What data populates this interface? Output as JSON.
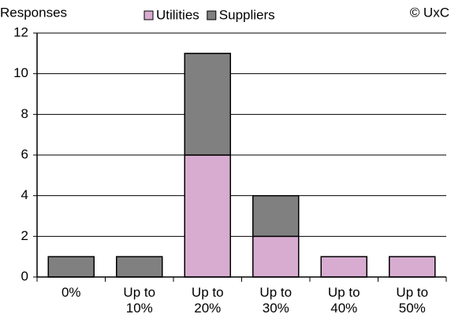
{
  "chart_data": {
    "type": "stacked_bar",
    "y_label": "Responses",
    "annotation": "© UxC",
    "categories": [
      "0%",
      "Up to 10%",
      "Up to 20%",
      "Up to 30%",
      "Up to 40%",
      "Up to 50%"
    ],
    "series": [
      {
        "name": "Utilities",
        "color": "#d8acd0",
        "values": [
          0,
          0,
          6,
          2,
          1,
          1
        ]
      },
      {
        "name": "Suppliers",
        "color": "#808080",
        "values": [
          1,
          1,
          5,
          2,
          0,
          0
        ]
      }
    ],
    "ylim": [
      0,
      12
    ],
    "yticks": [
      0,
      2,
      4,
      6,
      8,
      10,
      12
    ],
    "grid": true
  }
}
